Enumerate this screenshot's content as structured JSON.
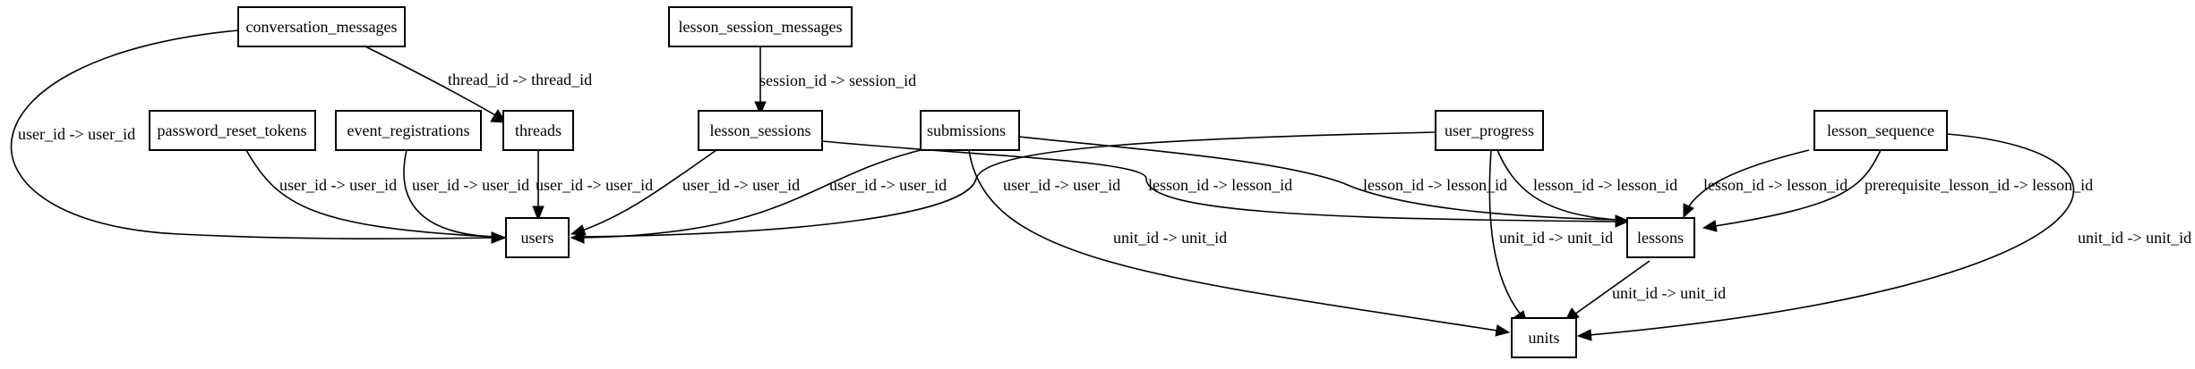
{
  "diagram": {
    "nodes": [
      {
        "id": "conversation_messages",
        "label": "conversation_messages"
      },
      {
        "id": "lesson_session_messages",
        "label": "lesson_session_messages"
      },
      {
        "id": "password_reset_tokens",
        "label": "password_reset_tokens"
      },
      {
        "id": "event_registrations",
        "label": "event_registrations"
      },
      {
        "id": "threads",
        "label": "threads"
      },
      {
        "id": "lesson_sessions",
        "label": "lesson_sessions"
      },
      {
        "id": "submissions",
        "label": "submissions"
      },
      {
        "id": "user_progress",
        "label": "user_progress"
      },
      {
        "id": "lesson_sequence",
        "label": "lesson_sequence"
      },
      {
        "id": "users",
        "label": "users"
      },
      {
        "id": "lessons",
        "label": "lessons"
      },
      {
        "id": "units",
        "label": "units"
      }
    ],
    "edges": [
      {
        "from": "conversation_messages",
        "to": "threads",
        "label": "thread_id -> thread_id"
      },
      {
        "from": "conversation_messages",
        "to": "users",
        "label": "user_id -> user_id"
      },
      {
        "from": "lesson_session_messages",
        "to": "lesson_sessions",
        "label": "session_id -> session_id"
      },
      {
        "from": "password_reset_tokens",
        "to": "users",
        "label": "user_id -> user_id"
      },
      {
        "from": "event_registrations",
        "to": "users",
        "label": "user_id -> user_id"
      },
      {
        "from": "threads",
        "to": "users",
        "label": "user_id -> user_id"
      },
      {
        "from": "lesson_sessions",
        "to": "users",
        "label": "user_id -> user_id"
      },
      {
        "from": "lesson_sessions",
        "to": "lessons",
        "label": "lesson_id -> lesson_id"
      },
      {
        "from": "submissions",
        "to": "users",
        "label": "user_id -> user_id"
      },
      {
        "from": "submissions",
        "to": "lessons",
        "label": "lesson_id -> lesson_id"
      },
      {
        "from": "submissions",
        "to": "units",
        "label": "unit_id -> unit_id"
      },
      {
        "from": "user_progress",
        "to": "users",
        "label": "user_id -> user_id"
      },
      {
        "from": "user_progress",
        "to": "lessons",
        "label": "lesson_id -> lesson_id"
      },
      {
        "from": "user_progress",
        "to": "units",
        "label": "unit_id -> unit_id"
      },
      {
        "from": "lesson_sequence",
        "to": "lessons",
        "label": "lesson_id -> lesson_id"
      },
      {
        "from": "lesson_sequence",
        "to": "lessons",
        "label": "prerequisite_lesson_id -> lesson_id"
      },
      {
        "from": "lesson_sequence",
        "to": "units",
        "label": "unit_id -> unit_id"
      },
      {
        "from": "lessons",
        "to": "units",
        "label": "unit_id -> unit_id"
      }
    ]
  }
}
